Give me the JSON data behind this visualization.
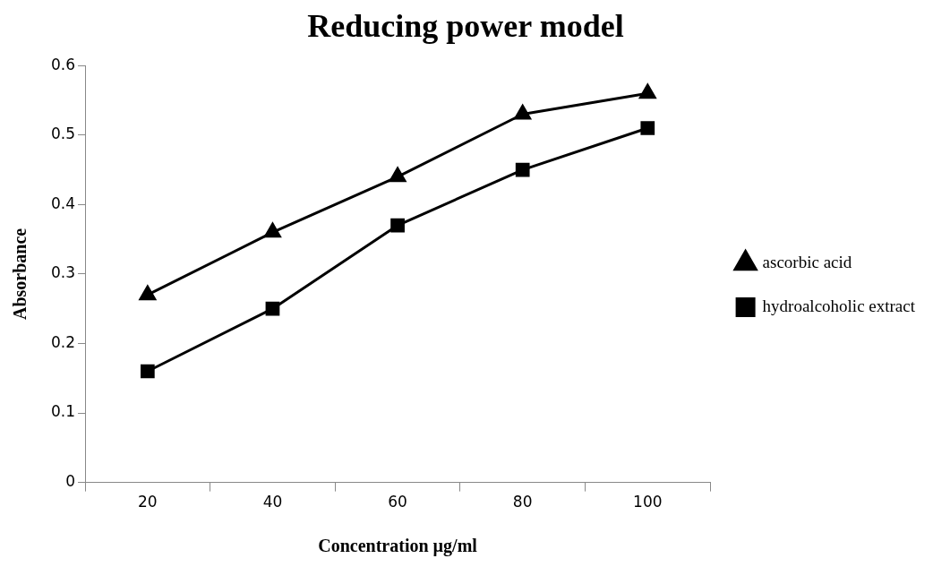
{
  "chart_data": {
    "type": "line",
    "title": "Reducing power model",
    "xlabel": "Concentration µg/ml",
    "ylabel": "Absorbance",
    "categories": [
      "20",
      "40",
      "60",
      "80",
      "100"
    ],
    "series": [
      {
        "name": "ascorbic acid",
        "color": "#000000",
        "marker": "triangle",
        "values": [
          0.27,
          0.36,
          0.44,
          0.53,
          0.56
        ]
      },
      {
        "name": "hydroalcoholic extract",
        "color": "#000000",
        "marker": "square",
        "values": [
          0.16,
          0.25,
          0.37,
          0.45,
          0.51
        ]
      }
    ],
    "ylim": [
      0,
      0.6
    ],
    "yticks": [
      0,
      0.1,
      0.2,
      0.3,
      0.4,
      0.5,
      0.6
    ],
    "grid": false,
    "legend": "right",
    "line_style": "solid"
  }
}
